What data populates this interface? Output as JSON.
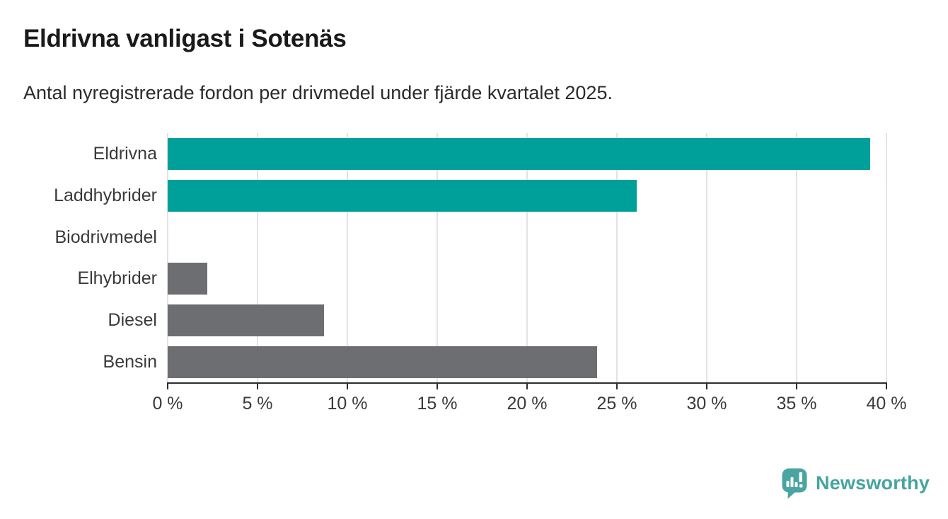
{
  "header": {
    "title": "Eldrivna vanligast i Sotenäs",
    "subtitle": "Antal nyregistrerade fordon per drivmedel under fjärde kvartalet 2025."
  },
  "chart_data": {
    "type": "bar",
    "orientation": "horizontal",
    "title": "Eldrivna vanligast i Sotenäs",
    "subtitle": "Antal nyregistrerade fordon per drivmedel under fjärde kvartalet 2025.",
    "categories": [
      "Eldrivna",
      "Laddhybrider",
      "Biodrivmedel",
      "Elhybrider",
      "Diesel",
      "Bensin"
    ],
    "values": [
      39.1,
      26.1,
      0,
      2.2,
      8.7,
      23.9
    ],
    "unit": "%",
    "bar_colors": [
      "#00a09a",
      "#00a09a",
      "#6d6e72",
      "#6d6e72",
      "#6d6e72",
      "#6d6e72"
    ],
    "xlim": [
      0,
      40
    ],
    "xticks": [
      0,
      5,
      10,
      15,
      20,
      25,
      30,
      35,
      40
    ],
    "xtick_labels": [
      "0 %",
      "5 %",
      "10 %",
      "15 %",
      "20 %",
      "25 %",
      "30 %",
      "35 %",
      "40 %"
    ],
    "xlabel": "",
    "ylabel": "",
    "grid": true,
    "legend": false
  },
  "branding": {
    "name": "Newsworthy",
    "logo_icon": "newsworthy-bubble-chart-icon",
    "logo_color": "#4aa5a2",
    "text_color": "#45a4a1"
  },
  "colors": {
    "highlight_teal": "#00a09a",
    "neutral_gray": "#6d6e72",
    "axis": "#2e2e2e",
    "gridline": "#e3e3e3",
    "title_text": "#1a1a1a",
    "label_text": "#3a3a3a",
    "background": "#ffffff"
  }
}
